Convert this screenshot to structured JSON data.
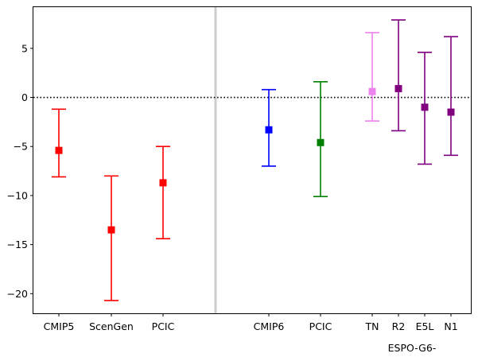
{
  "chart_data": {
    "type": "errorbar",
    "title": "",
    "xlabel": "",
    "ylabel": "",
    "ylim": [
      -22,
      9.2
    ],
    "yticks": [
      5,
      0,
      -5,
      -10,
      -15,
      -20
    ],
    "grid": false,
    "zero_line": "dotted",
    "separator_after": "PCIC",
    "group_label": "ESPO-G6-",
    "points": [
      {
        "label": "CMIP5",
        "value": -5.4,
        "low": -8.1,
        "high": -1.2,
        "color": "#ff0000"
      },
      {
        "label": "ScenGen",
        "value": -13.5,
        "low": -20.7,
        "high": -8.0,
        "color": "#ff0000"
      },
      {
        "label": "PCIC",
        "value": -8.7,
        "low": -14.4,
        "high": -5.0,
        "color": "#ff0000"
      },
      {
        "label": "CMIP6",
        "value": -3.3,
        "low": -7.0,
        "high": 0.8,
        "color": "#0000ff"
      },
      {
        "label": "PCIC",
        "value": -4.6,
        "low": -10.1,
        "high": 1.6,
        "color": "#008000"
      },
      {
        "label": "TN",
        "value": 0.6,
        "low": -2.4,
        "high": 6.6,
        "color": "#ee82ee"
      },
      {
        "label": "R2",
        "value": 0.9,
        "low": -3.4,
        "high": 7.9,
        "color": "#800080"
      },
      {
        "label": "E5L",
        "value": -1.0,
        "low": -6.8,
        "high": 4.6,
        "color": "#800080"
      },
      {
        "label": "N1",
        "value": -1.5,
        "low": -5.9,
        "high": 6.2,
        "color": "#800080"
      }
    ]
  }
}
